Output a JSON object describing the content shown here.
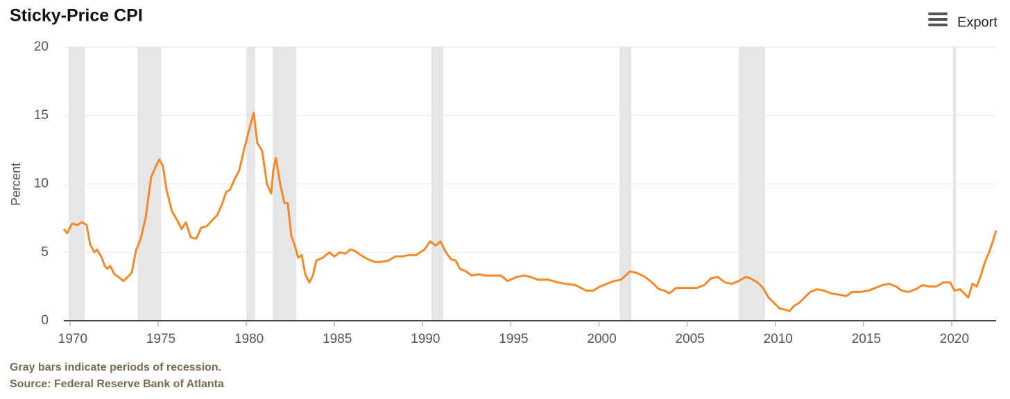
{
  "chart_data": {
    "type": "line",
    "title": "Sticky-Price CPI",
    "ylabel": "Percent",
    "x": [
      1969.65,
      1969.84,
      1970.12,
      1970.43,
      1970.67,
      1970.94,
      1971.14,
      1971.38,
      1971.53,
      1971.81,
      1971.97,
      1972.12,
      1972.28,
      1972.52,
      1972.75,
      1973.03,
      1973.27,
      1973.5,
      1973.74,
      1974.01,
      1974.29,
      1974.6,
      1974.84,
      1975.07,
      1975.27,
      1975.47,
      1975.78,
      1976.1,
      1976.33,
      1976.57,
      1976.85,
      1977.16,
      1977.44,
      1977.75,
      1978.03,
      1978.34,
      1978.62,
      1978.85,
      1979.09,
      1979.32,
      1979.6,
      1979.87,
      1980.07,
      1980.27,
      1980.42,
      1980.62,
      1980.9,
      1981.17,
      1981.41,
      1981.53,
      1981.68,
      1981.92,
      1982.16,
      1982.35,
      1982.55,
      1982.75,
      1982.94,
      1983.14,
      1983.34,
      1983.57,
      1983.77,
      1983.97,
      1984.32,
      1984.71,
      1984.99,
      1985.3,
      1985.62,
      1985.89,
      1986.17,
      1986.48,
      1986.88,
      1987.27,
      1987.66,
      1988.06,
      1988.45,
      1988.84,
      1989.24,
      1989.63,
      1990.1,
      1990.42,
      1990.73,
      1991.01,
      1991.32,
      1991.6,
      1991.87,
      1992.11,
      1992.46,
      1992.78,
      1993.17,
      1993.56,
      1994.04,
      1994.43,
      1994.82,
      1995.33,
      1995.73,
      1996.12,
      1996.51,
      1997.1,
      1997.69,
      1998.09,
      1998.68,
      1999.27,
      1999.66,
      2000.06,
      2000.45,
      2000.84,
      2001.24,
      2001.51,
      2001.75,
      2002.14,
      2002.61,
      2003.01,
      2003.4,
      2003.71,
      2003.99,
      2004.38,
      2004.78,
      2005.17,
      2005.56,
      2005.96,
      2006.35,
      2006.74,
      2007.14,
      2007.53,
      2007.92,
      2008.32,
      2008.59,
      2008.99,
      2009.3,
      2009.61,
      2009.93,
      2010.24,
      2010.56,
      2010.8,
      2011.07,
      2011.35,
      2011.66,
      2011.97,
      2012.37,
      2012.76,
      2013.16,
      2013.63,
      2014.02,
      2014.34,
      2014.81,
      2015.28,
      2015.67,
      2016.07,
      2016.46,
      2016.85,
      2017.17,
      2017.56,
      2017.95,
      2018.35,
      2018.74,
      2019.13,
      2019.53,
      2019.92,
      2020.16,
      2020.47,
      2020.71,
      2020.94,
      2021.18,
      2021.42,
      2021.65,
      2021.89,
      2022.12,
      2022.36,
      2022.52
    ],
    "values": [
      6.7,
      6.4,
      7.1,
      7.0,
      7.2,
      7.0,
      5.6,
      5.0,
      5.2,
      4.6,
      4.0,
      3.8,
      4.0,
      3.4,
      3.2,
      2.9,
      3.2,
      3.5,
      5.1,
      6.0,
      7.5,
      10.5,
      11.2,
      11.8,
      11.3,
      9.6,
      8.0,
      7.3,
      6.7,
      7.2,
      6.1,
      6.0,
      6.8,
      6.9,
      7.3,
      7.7,
      8.5,
      9.4,
      9.6,
      10.3,
      11.0,
      12.5,
      13.5,
      14.5,
      15.2,
      13.0,
      12.4,
      10.0,
      9.3,
      11.0,
      11.9,
      10.0,
      8.6,
      8.6,
      6.2,
      5.5,
      4.6,
      4.8,
      3.4,
      2.8,
      3.3,
      4.4,
      4.6,
      5.0,
      4.7,
      5.0,
      4.9,
      5.2,
      5.1,
      4.8,
      4.5,
      4.3,
      4.3,
      4.4,
      4.7,
      4.7,
      4.8,
      4.8,
      5.2,
      5.8,
      5.5,
      5.8,
      5.0,
      4.5,
      4.4,
      3.8,
      3.6,
      3.3,
      3.4,
      3.3,
      3.3,
      3.3,
      2.9,
      3.2,
      3.3,
      3.2,
      3.0,
      3.0,
      2.8,
      2.7,
      2.6,
      2.2,
      2.2,
      2.5,
      2.7,
      2.9,
      3.0,
      3.3,
      3.6,
      3.5,
      3.2,
      2.8,
      2.3,
      2.2,
      2.0,
      2.4,
      2.4,
      2.4,
      2.4,
      2.6,
      3.1,
      3.2,
      2.8,
      2.7,
      2.9,
      3.2,
      3.1,
      2.8,
      2.4,
      1.7,
      1.3,
      0.9,
      0.8,
      0.7,
      1.1,
      1.3,
      1.7,
      2.1,
      2.3,
      2.2,
      2.0,
      1.9,
      1.8,
      2.1,
      2.1,
      2.2,
      2.4,
      2.6,
      2.7,
      2.5,
      2.2,
      2.1,
      2.3,
      2.6,
      2.5,
      2.5,
      2.8,
      2.8,
      2.2,
      2.3,
      2.0,
      1.7,
      2.7,
      2.5,
      3.3,
      4.3,
      5.0,
      5.9,
      6.6
    ],
    "color": "#f28a2a",
    "recessions": [
      [
        1969.92,
        1970.83
      ],
      [
        1973.83,
        1975.17
      ],
      [
        1980.0,
        1980.5
      ],
      [
        1981.5,
        1982.83
      ],
      [
        1990.5,
        1991.17
      ],
      [
        2001.17,
        2001.83
      ],
      [
        2007.92,
        2009.42
      ],
      [
        2020.08,
        2020.25
      ]
    ],
    "recession_color": "#e6e6e6",
    "xlim": [
      1969.65,
      2022.52
    ],
    "xticks": [
      1970,
      1975,
      1980,
      1985,
      1990,
      1995,
      2000,
      2005,
      2010,
      2015,
      2020
    ],
    "ylim": [
      0,
      20
    ],
    "yticks": [
      0,
      5,
      10,
      15,
      20
    ],
    "grid": true,
    "notes": [
      "Gray bars indicate periods of recession.",
      "Source: Federal Reserve Bank of Atlanta"
    ]
  },
  "toolbar": {
    "export": "Export"
  }
}
